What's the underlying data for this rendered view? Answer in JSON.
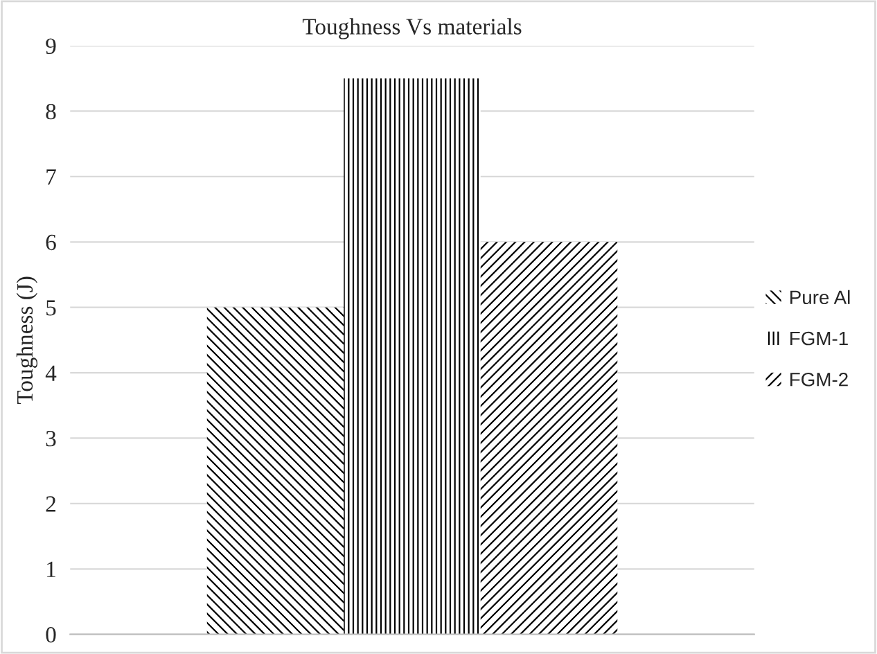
{
  "chart_data": {
    "type": "bar",
    "title": "Toughness Vs materials",
    "ylabel": "Toughness (J)",
    "categories": [
      null
    ],
    "series": [
      {
        "name": "Pure Al",
        "color": "#000000",
        "values": [
          5
        ]
      },
      {
        "name": "FGM-1",
        "color": "#000000",
        "values": [
          8.5
        ]
      },
      {
        "name": "FGM-2",
        "color": "#000000",
        "values": [
          6
        ]
      }
    ],
    "ylim": [
      0,
      9
    ],
    "yticks": [
      0,
      1,
      2,
      3,
      4,
      5,
      6,
      7,
      8,
      9
    ],
    "grid": "y",
    "legend": "right"
  }
}
